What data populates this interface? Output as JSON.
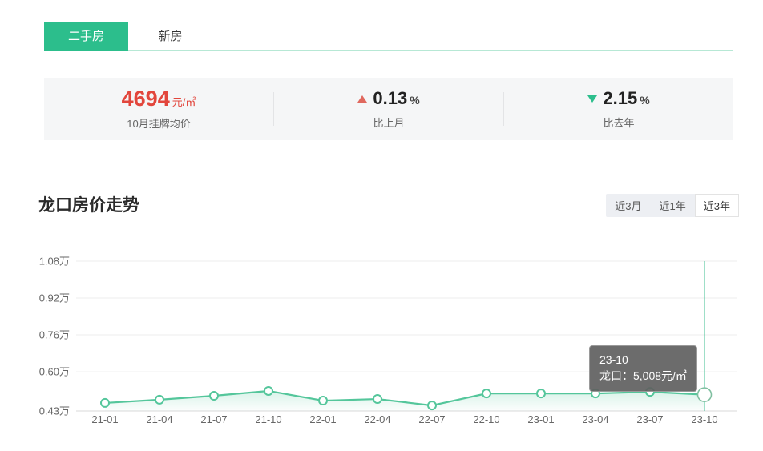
{
  "tabs": [
    {
      "label": "二手房",
      "active": true
    },
    {
      "label": "新房",
      "active": false
    }
  ],
  "stats": {
    "price": {
      "value": "4694",
      "unit": "元/㎡",
      "label": "10月挂牌均价"
    },
    "mom": {
      "direction": "up",
      "value": "0.13",
      "unit": "%",
      "label": "比上月"
    },
    "yoy": {
      "direction": "down",
      "value": "2.15",
      "unit": "%",
      "label": "比去年"
    }
  },
  "section": {
    "title": "龙口房价走势"
  },
  "range_buttons": [
    {
      "label": "近3月",
      "active": false
    },
    {
      "label": "近1年",
      "active": false
    },
    {
      "label": "近3年",
      "active": true
    }
  ],
  "tooltip": {
    "date": "23-10",
    "text": "龙口：5,008元/㎡"
  },
  "colors": {
    "accent_green": "#2cbe8c",
    "tab_underline": "#b7e8d5",
    "line_green": "#54c69b",
    "price_red": "#e2463c",
    "up_triangle": "#e0685e",
    "down_triangle": "#2cbe8c",
    "crosshair": "#3fbf92",
    "gridline": "#ededed",
    "axis_line": "#d8d8d8",
    "axis_text": "#666666",
    "tooltip_bg": "rgba(96,96,96,0.92)"
  },
  "chart_data": {
    "type": "line",
    "title": "龙口房价走势",
    "x": [
      "21-01",
      "21-04",
      "21-07",
      "21-10",
      "22-01",
      "22-04",
      "22-07",
      "22-10",
      "23-01",
      "23-04",
      "23-07",
      "23-10"
    ],
    "series": [
      {
        "name": "龙口",
        "values": [
          4650,
          4790,
          4960,
          5170,
          4750,
          4820,
          4540,
          5060,
          5060,
          5060,
          5130,
          5008
        ]
      }
    ],
    "unit": "元/㎡",
    "ylim": [
      4300,
      10800
    ],
    "ytick_values": [
      4300,
      6000,
      7600,
      9200,
      10800
    ],
    "ytick_labels": [
      "0.43万",
      "0.60万",
      "0.76万",
      "0.92万",
      "1.08万"
    ],
    "highlight_index": 11,
    "grid": true,
    "legend_position": "none"
  }
}
